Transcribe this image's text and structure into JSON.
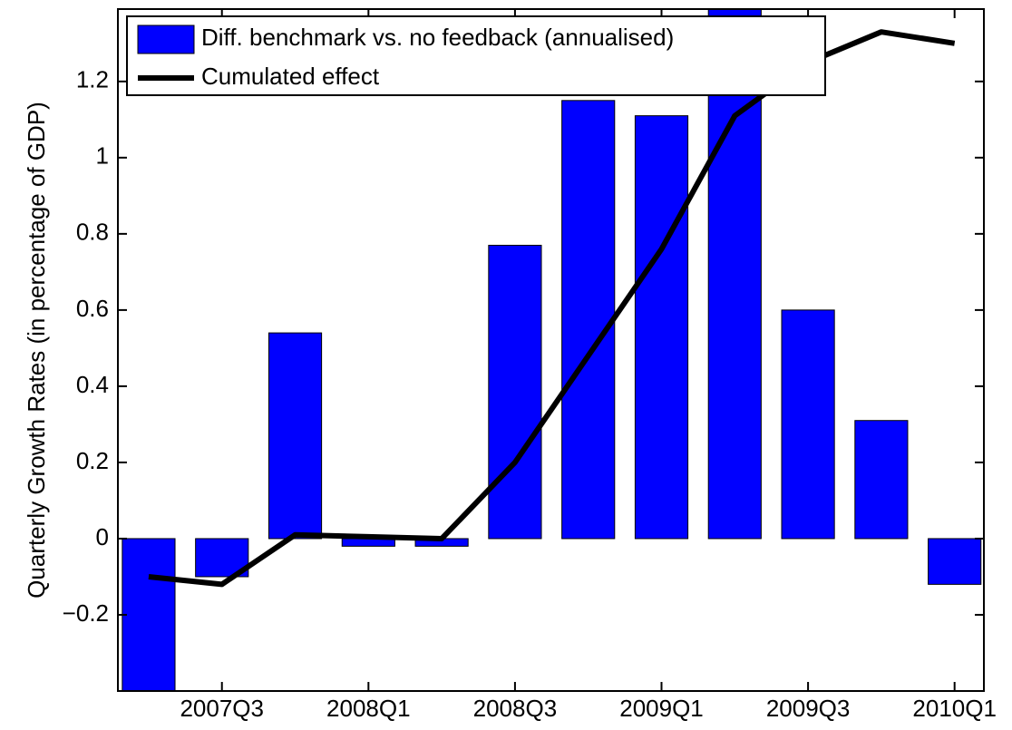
{
  "chart_data": {
    "type": "bar",
    "y_label": "Quarterly Growth Rates (in percentage of GDP)",
    "categories": [
      null,
      "2007Q3",
      null,
      "2008Q1",
      null,
      "2008Q3",
      null,
      "2009Q1",
      null,
      "2009Q3",
      null,
      "2010Q1"
    ],
    "series": [
      {
        "name": "Diff. benchmark vs. no feedback (annualised)",
        "type": "bar",
        "color": "#0000ff",
        "values": [
          -0.45,
          -0.1,
          0.54,
          -0.02,
          -0.02,
          0.77,
          1.15,
          1.11,
          1.42,
          0.6,
          0.31,
          -0.12
        ]
      },
      {
        "name": "Cumulated effect",
        "type": "line",
        "color": "#000000",
        "values": [
          -0.1,
          -0.12,
          0.01,
          0.005,
          0,
          0.2,
          0.48,
          0.76,
          1.11,
          1.25,
          1.33,
          1.3
        ]
      }
    ],
    "ylim": [
      -0.4,
      1.39
    ],
    "yticks": [
      {
        "value": -0.2,
        "label": "−0.2"
      },
      0,
      0.2,
      0.4,
      0.6,
      0.8,
      1,
      1.2
    ],
    "grid": false,
    "legend": "upper-left"
  }
}
